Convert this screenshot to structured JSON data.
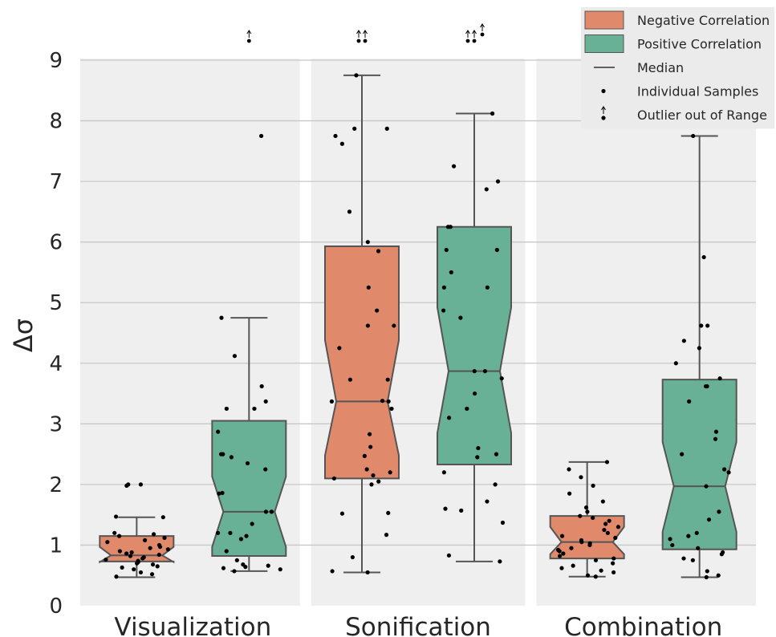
{
  "chart_data": {
    "type": "box",
    "ylabel": "Δσ",
    "xlabel": "",
    "ylim": [
      0,
      9
    ],
    "yticks": [
      0,
      1,
      2,
      3,
      4,
      5,
      6,
      7,
      8,
      9
    ],
    "grid": true,
    "notched": true,
    "legend_position": "top-right",
    "categories": [
      "Visualization",
      "Sonification",
      "Combination"
    ],
    "series": [
      {
        "name": "Negative Correlation",
        "color": "#e08a6b",
        "boxes": [
          {
            "q1": 0.73,
            "median": 0.83,
            "q3": 1.15,
            "whisker_low": 0.47,
            "whisker_high": 1.46,
            "notch_low": 0.72,
            "notch_high": 0.97,
            "points": [
              0.48,
              0.52,
              0.55,
              0.6,
              0.63,
              0.65,
              0.68,
              0.7,
              0.72,
              0.74,
              0.76,
              0.78,
              0.8,
              0.82,
              0.84,
              0.86,
              0.88,
              0.9,
              0.93,
              0.95,
              0.97,
              1.0,
              1.05,
              1.08,
              1.12,
              1.15,
              1.18,
              1.2,
              1.46,
              1.47,
              1.98,
              2.0,
              2.0
            ],
            "outliers_out_of_range": 0
          },
          {
            "q1": 2.1,
            "median": 3.37,
            "q3": 5.93,
            "whisker_low": 0.55,
            "whisker_high": 8.75,
            "notch_low": 2.48,
            "notch_high": 4.38,
            "points": [
              0.55,
              0.57,
              0.8,
              1.17,
              1.52,
              1.53,
              2.0,
              2.05,
              2.1,
              2.15,
              2.2,
              2.25,
              2.47,
              2.62,
              2.83,
              3.25,
              3.37,
              3.37,
              3.38,
              3.73,
              3.73,
              4.25,
              4.62,
              4.62,
              4.87,
              5.25,
              5.85,
              6.0,
              6.5,
              7.62,
              7.75,
              7.87,
              7.87,
              8.75
            ],
            "outliers_out_of_range": 2
          },
          {
            "q1": 0.78,
            "median": 1.05,
            "q3": 1.48,
            "whisker_low": 0.48,
            "whisker_high": 2.37,
            "notch_low": 0.85,
            "notch_high": 1.3,
            "points": [
              0.48,
              0.5,
              0.55,
              0.58,
              0.62,
              0.66,
              0.7,
              0.75,
              0.78,
              0.82,
              0.86,
              0.9,
              0.92,
              0.95,
              1.0,
              1.03,
              1.05,
              1.08,
              1.12,
              1.15,
              1.2,
              1.25,
              1.3,
              1.35,
              1.4,
              1.45,
              1.48,
              1.55,
              1.62,
              1.72,
              1.85,
              1.98,
              2.12,
              2.25,
              2.37
            ],
            "outliers_out_of_range": 0
          }
        ]
      },
      {
        "name": "Positive Correlation",
        "color": "#68b096",
        "boxes": [
          {
            "q1": 0.82,
            "median": 1.55,
            "q3": 3.05,
            "whisker_low": 0.57,
            "whisker_high": 4.75,
            "notch_low": 0.97,
            "notch_high": 2.13,
            "points": [
              0.57,
              0.6,
              0.62,
              0.64,
              0.66,
              0.68,
              0.75,
              0.9,
              1.1,
              1.15,
              1.2,
              1.2,
              1.35,
              1.55,
              1.55,
              1.85,
              1.86,
              2.25,
              2.35,
              2.45,
              2.5,
              2.5,
              2.87,
              3.25,
              3.25,
              3.37,
              3.62,
              4.12,
              4.75,
              7.75
            ],
            "outliers_out_of_range": 1
          },
          {
            "q1": 2.33,
            "median": 3.87,
            "q3": 6.25,
            "whisker_low": 0.73,
            "whisker_high": 8.12,
            "notch_low": 2.85,
            "notch_high": 4.92,
            "points": [
              0.73,
              0.83,
              1.37,
              1.57,
              1.6,
              1.72,
              2.0,
              2.2,
              2.45,
              2.5,
              2.6,
              3.1,
              3.25,
              3.5,
              3.75,
              3.87,
              3.87,
              4.75,
              4.87,
              5.25,
              5.25,
              5.5,
              5.87,
              5.87,
              6.25,
              6.25,
              6.87,
              7.0,
              7.25,
              8.12
            ],
            "outliers_out_of_range": 3
          },
          {
            "q1": 0.93,
            "median": 1.97,
            "q3": 3.73,
            "whisker_low": 0.47,
            "whisker_high": 7.75,
            "notch_low": 1.22,
            "notch_high": 2.7,
            "points": [
              0.47,
              0.5,
              0.57,
              0.75,
              0.78,
              0.85,
              0.88,
              0.95,
              1.0,
              1.1,
              1.15,
              1.2,
              1.42,
              1.55,
              1.97,
              2.2,
              2.25,
              2.5,
              2.75,
              2.87,
              3.37,
              3.62,
              3.62,
              3.75,
              4.0,
              4.25,
              4.37,
              4.62,
              4.62,
              5.75,
              7.75
            ],
            "outliers_out_of_range": 0
          }
        ]
      }
    ],
    "legend": [
      {
        "label": "Negative Correlation",
        "kind": "patch",
        "color": "#e08a6b"
      },
      {
        "label": "Positive Correlation",
        "kind": "patch",
        "color": "#68b096"
      },
      {
        "label": "Median",
        "kind": "line"
      },
      {
        "label": "Individual Samples",
        "kind": "dot"
      },
      {
        "label": "Outlier out of Range",
        "kind": "arrow-dot"
      }
    ]
  }
}
